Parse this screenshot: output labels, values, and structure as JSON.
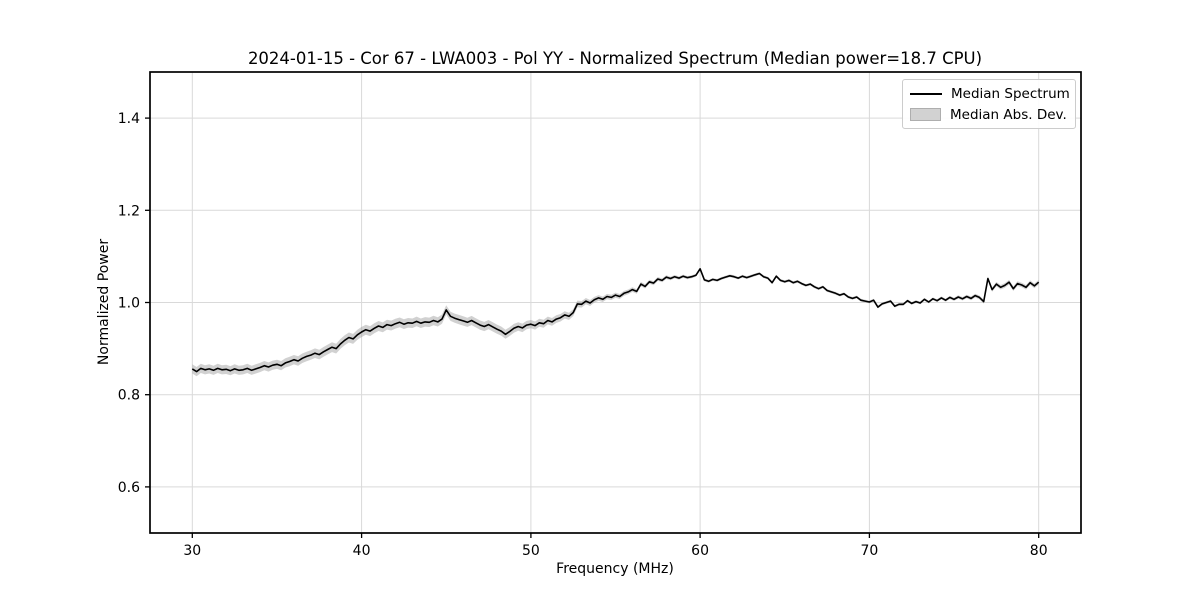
{
  "chart_data": {
    "type": "line",
    "title": "2024-01-15 - Cor 67 - LWA003 - Pol YY - Normalized Spectrum (Median power=18.7 CPU)",
    "xlabel": "Frequency (MHz)",
    "ylabel": "Normalized Power",
    "xlim": [
      27.5,
      82.5
    ],
    "ylim": [
      0.5,
      1.5
    ],
    "xticks": [
      30,
      40,
      50,
      60,
      70,
      80
    ],
    "yticks": [
      0.6,
      0.8,
      1.0,
      1.2,
      1.4
    ],
    "grid": true,
    "legend": {
      "position": "upper right",
      "entries": [
        "Median Spectrum",
        "Median Abs. Dev."
      ]
    },
    "colors": {
      "line": "#000000",
      "band": "#9a9a9a",
      "band_opacity": 0.45,
      "grid": "#d9d9d9",
      "spine": "#000000",
      "legend_border": "#cccccc"
    },
    "series": {
      "name": "Median Spectrum",
      "x_start": 30.0,
      "x_step": 0.25,
      "y": [
        0.856,
        0.85,
        0.857,
        0.854,
        0.856,
        0.853,
        0.857,
        0.854,
        0.855,
        0.852,
        0.856,
        0.853,
        0.854,
        0.857,
        0.853,
        0.856,
        0.859,
        0.863,
        0.86,
        0.864,
        0.866,
        0.863,
        0.869,
        0.872,
        0.876,
        0.873,
        0.879,
        0.883,
        0.886,
        0.89,
        0.887,
        0.893,
        0.898,
        0.903,
        0.9,
        0.91,
        0.918,
        0.924,
        0.921,
        0.93,
        0.936,
        0.941,
        0.938,
        0.944,
        0.949,
        0.946,
        0.952,
        0.95,
        0.954,
        0.957,
        0.953,
        0.956,
        0.955,
        0.959,
        0.955,
        0.958,
        0.957,
        0.961,
        0.958,
        0.964,
        0.984,
        0.97,
        0.966,
        0.963,
        0.96,
        0.957,
        0.961,
        0.956,
        0.951,
        0.948,
        0.952,
        0.947,
        0.942,
        0.938,
        0.931,
        0.937,
        0.944,
        0.948,
        0.945,
        0.951,
        0.953,
        0.95,
        0.956,
        0.954,
        0.961,
        0.958,
        0.964,
        0.967,
        0.973,
        0.97,
        0.978,
        0.997,
        0.996,
        1.003,
        0.999,
        1.006,
        1.01,
        1.007,
        1.013,
        1.011,
        1.016,
        1.013,
        1.02,
        1.023,
        1.028,
        1.024,
        1.04,
        1.035,
        1.045,
        1.042,
        1.051,
        1.048,
        1.055,
        1.052,
        1.056,
        1.053,
        1.057,
        1.054,
        1.056,
        1.059,
        1.073,
        1.049,
        1.046,
        1.05,
        1.048,
        1.052,
        1.055,
        1.058,
        1.056,
        1.053,
        1.057,
        1.054,
        1.057,
        1.06,
        1.063,
        1.056,
        1.053,
        1.043,
        1.057,
        1.048,
        1.045,
        1.048,
        1.043,
        1.046,
        1.041,
        1.037,
        1.04,
        1.034,
        1.03,
        1.034,
        1.026,
        1.023,
        1.02,
        1.016,
        1.019,
        1.012,
        1.009,
        1.012,
        1.005,
        1.003,
        1.001,
        1.005,
        0.99,
        0.997,
        1.0,
        1.003,
        0.992,
        0.996,
        0.996,
        1.004,
        0.998,
        1.002,
        0.999,
        1.007,
        1.001,
        1.008,
        1.004,
        1.01,
        1.005,
        1.011,
        1.007,
        1.012,
        1.008,
        1.013,
        1.009,
        1.015,
        1.011,
        1.002,
        1.052,
        1.028,
        1.04,
        1.033,
        1.037,
        1.044,
        1.03,
        1.041,
        1.038,
        1.033,
        1.043,
        1.036,
        1.044
      ]
    },
    "mad_band": {
      "name": "Median Abs. Dev.",
      "anchors_x": [
        30,
        35,
        40,
        45,
        48,
        50,
        52,
        54,
        56,
        58,
        60,
        65,
        70,
        74,
        76,
        78,
        80
      ],
      "anchors_halfwidth": [
        0.01,
        0.01,
        0.011,
        0.01,
        0.01,
        0.009,
        0.008,
        0.006,
        0.005,
        0.004,
        0.003,
        0.003,
        0.003,
        0.003,
        0.004,
        0.005,
        0.005
      ]
    }
  }
}
